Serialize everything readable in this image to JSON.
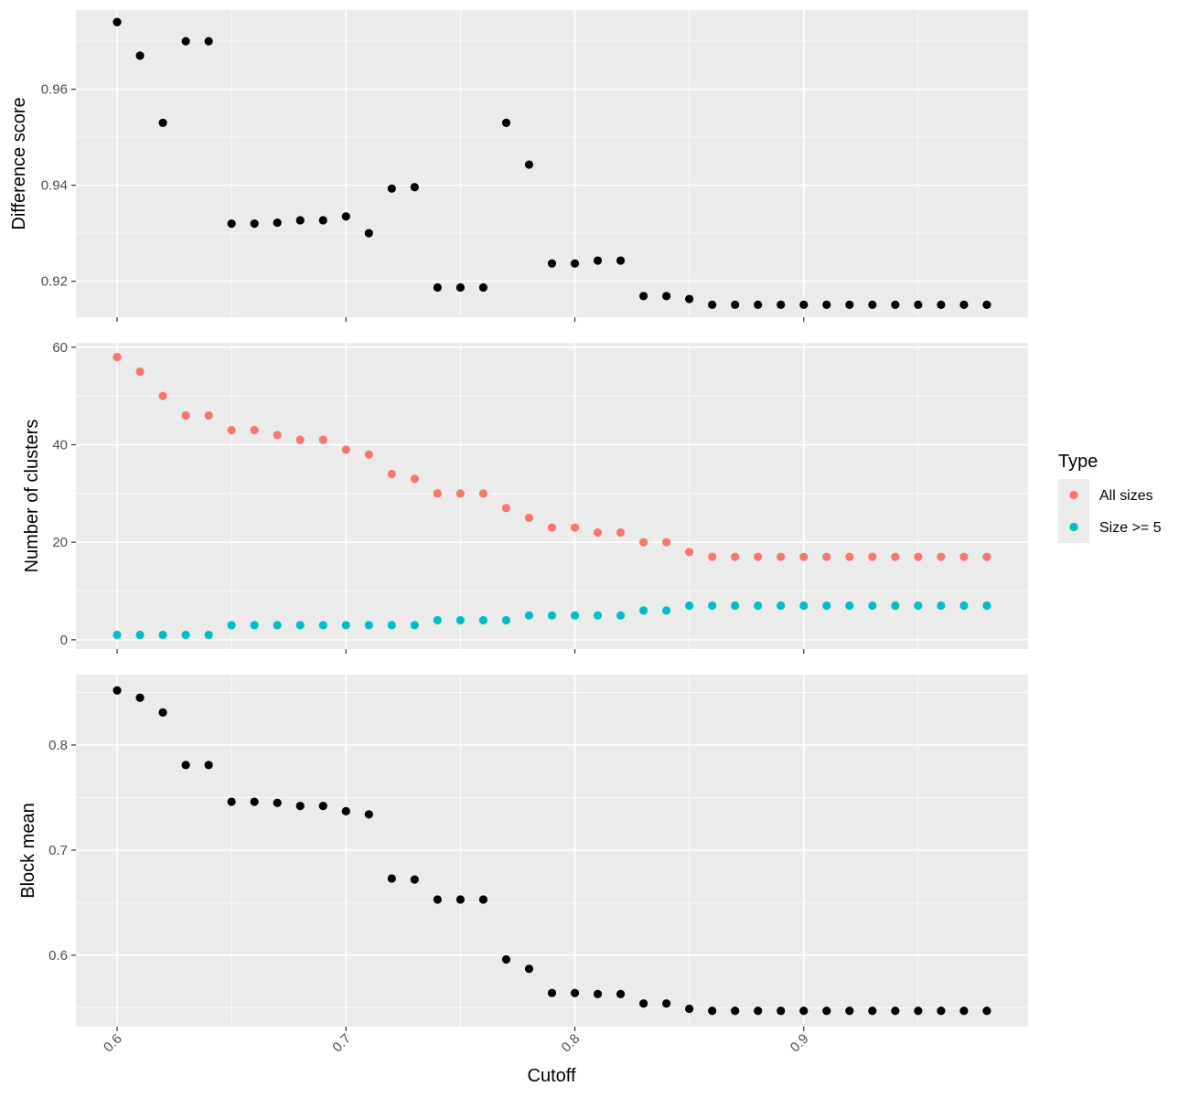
{
  "chart_data": {
    "type": "scatter",
    "xlabel": "Cutoff",
    "x_ticks": [
      0.6,
      0.7,
      0.8,
      0.9
    ],
    "xlim": [
      0.582,
      0.998
    ],
    "x": [
      0.6,
      0.61,
      0.62,
      0.63,
      0.64,
      0.65,
      0.66,
      0.67,
      0.68,
      0.69,
      0.7,
      0.71,
      0.72,
      0.73,
      0.74,
      0.75,
      0.76,
      0.77,
      0.78,
      0.79,
      0.8,
      0.81,
      0.82,
      0.83,
      0.84,
      0.85,
      0.86,
      0.87,
      0.88,
      0.89,
      0.9,
      0.91,
      0.92,
      0.93,
      0.94,
      0.95,
      0.96,
      0.97,
      0.98
    ],
    "grid": true,
    "legend": {
      "title": "Type",
      "position": "right",
      "entries": [
        {
          "label": "All sizes",
          "color": "#f8766d"
        },
        {
          "label": "Size >= 5",
          "color": "#00bfc4"
        }
      ]
    },
    "panels": [
      {
        "ylabel": "Difference score",
        "ylim": [
          0.9125,
          0.9765
        ],
        "y_ticks": [
          0.92,
          0.94,
          0.96
        ],
        "y_tick_labels": [
          "0.92",
          "0.94",
          "0.96"
        ],
        "series": [
          {
            "color": "#000000",
            "values": [
              0.974,
              0.967,
              0.953,
              0.97,
              0.97,
              0.932,
              0.932,
              0.9322,
              0.9327,
              0.9327,
              0.9335,
              0.93,
              0.9393,
              0.9396,
              0.9187,
              0.9187,
              0.9187,
              0.953,
              0.9443,
              0.9237,
              0.9237,
              0.9243,
              0.9243,
              0.9169,
              0.9169,
              0.9163,
              0.9151,
              0.9151,
              0.9151,
              0.9151,
              0.9151,
              0.9151,
              0.9151,
              0.9151,
              0.9151,
              0.9151,
              0.9151,
              0.9151,
              0.9151
            ]
          }
        ]
      },
      {
        "ylabel": "Number of clusters",
        "ylim": [
          -1.9,
          60.9
        ],
        "y_ticks": [
          0,
          20,
          40,
          60
        ],
        "y_tick_labels": [
          "0",
          "20",
          "40",
          "60"
        ],
        "series": [
          {
            "name": "All sizes",
            "color": "#f8766d",
            "values": [
              58,
              55,
              50,
              46,
              46,
              43,
              43,
              42,
              41,
              41,
              39,
              38,
              34,
              33,
              30,
              30,
              30,
              27,
              25,
              23,
              23,
              22,
              22,
              20,
              20,
              18,
              17,
              17,
              17,
              17,
              17,
              17,
              17,
              17,
              17,
              17,
              17,
              17,
              17
            ]
          },
          {
            "name": "Size >= 5",
            "color": "#00bfc4",
            "values": [
              1,
              1,
              1,
              1,
              1,
              3,
              3,
              3,
              3,
              3,
              3,
              3,
              3,
              3,
              4,
              4,
              4,
              4,
              5,
              5,
              5,
              5,
              5,
              6,
              6,
              7,
              7,
              7,
              7,
              7,
              7,
              7,
              7,
              7,
              7,
              7,
              7,
              7,
              7
            ]
          }
        ]
      },
      {
        "ylabel": "Block mean",
        "ylim": [
          0.532,
          0.867
        ],
        "y_ticks": [
          0.6,
          0.7,
          0.8
        ],
        "y_tick_labels": [
          "0.6",
          "0.7",
          "0.8"
        ],
        "series": [
          {
            "color": "#000000",
            "values": [
              0.852,
              0.845,
              0.831,
              0.781,
              0.781,
              0.746,
              0.746,
              0.745,
              0.742,
              0.742,
              0.737,
              0.734,
              0.673,
              0.672,
              0.653,
              0.653,
              0.653,
              0.596,
              0.587,
              0.564,
              0.564,
              0.563,
              0.563,
              0.554,
              0.554,
              0.549,
              0.547,
              0.547,
              0.547,
              0.547,
              0.547,
              0.547,
              0.547,
              0.547,
              0.547,
              0.547,
              0.547,
              0.547,
              0.547
            ]
          }
        ]
      }
    ]
  }
}
